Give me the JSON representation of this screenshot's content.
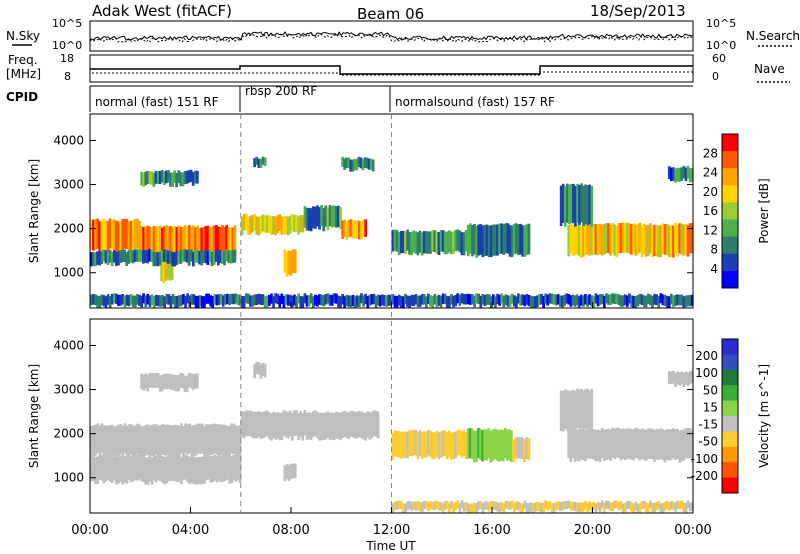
{
  "header": {
    "station": "Adak West (fitACF)",
    "beam": "Beam 06",
    "date": "18/Sep/2013"
  },
  "top_panels": {
    "nsky": {
      "label": "N.Sky",
      "tick_top": "10^5",
      "tick_bottom": "10^0"
    },
    "nsearch": {
      "label": "N.Search",
      "tick_top": "10^5",
      "tick_bottom": "10^0"
    },
    "freq": {
      "label": "Freq.",
      "unit": "[MHz]",
      "tick_top": "18",
      "tick_bottom": "8"
    },
    "nave": {
      "label": "Nave",
      "tick_top": "60",
      "tick_bottom": "0"
    },
    "cpid": {
      "label": "CPID",
      "modes": [
        {
          "label": "normal (fast) 151 RF",
          "start_hour": 0,
          "end_hour": 6
        },
        {
          "label": "rbsp 200 RF",
          "start_hour": 6,
          "end_hour": 12
        },
        {
          "label": "normalsound (fast) 157 RF",
          "start_hour": 12,
          "end_hour": 24
        }
      ]
    }
  },
  "colors": {
    "power_scale": [
      "#0000ff",
      "#1a3fb0",
      "#2e7d6a",
      "#4caf50",
      "#9acd32",
      "#ffd400",
      "#ffa500",
      "#ff5a00",
      "#ff0000"
    ],
    "velocity_scale": [
      "#2b2bd0",
      "#3050c0",
      "#1f7a3a",
      "#38b038",
      "#8bd448",
      "#c0c0c0",
      "#ffcc33",
      "#ff9900",
      "#ff5500",
      "#ff0000"
    ],
    "ground_scatter": "#bebebe"
  },
  "chart_data": [
    {
      "type": "heatmap",
      "title": "Power",
      "ylabel": "Slant Range [km]",
      "xlabel": "Time UT",
      "x_ticks": [
        "00:00",
        "04:00",
        "08:00",
        "12:00",
        "16:00",
        "20:00",
        "00:00"
      ],
      "y_ticks": [
        "1000",
        "2000",
        "3000",
        "4000"
      ],
      "xlim_hours": [
        0,
        24
      ],
      "ylim_km": [
        200,
        4600
      ],
      "colorbar": {
        "label": "Power [dB]",
        "ticks": [
          "4",
          "8",
          "12",
          "16",
          "20",
          "24",
          "28"
        ],
        "range": [
          0,
          30
        ]
      },
      "regions": [
        {
          "t0": 0.0,
          "t1": 2.0,
          "r0": 1500,
          "r1": 2200,
          "value": 22
        },
        {
          "t0": 2.0,
          "t1": 5.8,
          "r0": 1350,
          "r1": 2050,
          "value": 24
        },
        {
          "t0": 2.8,
          "t1": 3.3,
          "r0": 800,
          "r1": 1400,
          "value": 18
        },
        {
          "t0": 2.0,
          "t1": 4.3,
          "r0": 3000,
          "r1": 3300,
          "value": 10
        },
        {
          "t0": 0.0,
          "t1": 5.8,
          "r0": 1200,
          "r1": 1500,
          "value": 8
        },
        {
          "t0": 6.0,
          "t1": 8.5,
          "r0": 1900,
          "r1": 2300,
          "value": 18
        },
        {
          "t0": 8.5,
          "t1": 10.0,
          "r0": 2000,
          "r1": 2500,
          "value": 10
        },
        {
          "t0": 7.7,
          "t1": 8.2,
          "r0": 950,
          "r1": 1500,
          "value": 20
        },
        {
          "t0": 6.5,
          "t1": 7.0,
          "r0": 3400,
          "r1": 3600,
          "value": 8
        },
        {
          "t0": 10.0,
          "t1": 11.0,
          "r0": 1800,
          "r1": 2200,
          "value": 22
        },
        {
          "t0": 10.0,
          "t1": 11.3,
          "r0": 3350,
          "r1": 3600,
          "value": 8
        },
        {
          "t0": 12.0,
          "t1": 15.0,
          "r0": 1450,
          "r1": 1950,
          "value": 10
        },
        {
          "t0": 15.0,
          "t1": 17.5,
          "r0": 1400,
          "r1": 2100,
          "value": 8
        },
        {
          "t0": 19.0,
          "t1": 24.0,
          "r0": 1400,
          "r1": 2100,
          "value": 20
        },
        {
          "t0": 18.7,
          "t1": 20.0,
          "r0": 2100,
          "r1": 3000,
          "value": 8
        },
        {
          "t0": 23.0,
          "t1": 24.0,
          "r0": 3100,
          "r1": 3400,
          "value": 8
        },
        {
          "t0": 0.0,
          "t1": 24.0,
          "r0": 250,
          "r1": 500,
          "value": 6
        }
      ]
    },
    {
      "type": "heatmap",
      "title": "Velocity",
      "ylabel": "Slant Range [km]",
      "xlabel": "Time UT",
      "x_ticks": [
        "00:00",
        "04:00",
        "08:00",
        "12:00",
        "16:00",
        "20:00",
        "00:00"
      ],
      "y_ticks": [
        "1000",
        "2000",
        "3000",
        "4000"
      ],
      "xlim_hours": [
        0,
        24
      ],
      "ylim_km": [
        200,
        4600
      ],
      "colorbar": {
        "label": "Velocity [m s^-1]",
        "ticks": [
          "200",
          "100",
          "50",
          "15",
          "-15",
          "-50",
          "-100",
          "-200"
        ],
        "range": [
          -250,
          250
        ]
      },
      "regions": [
        {
          "t0": 0.0,
          "t1": 6.0,
          "r0": 1500,
          "r1": 2200,
          "value": 0,
          "gs": true
        },
        {
          "t0": 0.0,
          "t1": 6.0,
          "r0": 900,
          "r1": 1500,
          "value": 0,
          "gs": true
        },
        {
          "t0": 2.0,
          "t1": 4.3,
          "r0": 3000,
          "r1": 3350,
          "value": 0,
          "gs": true
        },
        {
          "t0": 6.0,
          "t1": 11.5,
          "r0": 1900,
          "r1": 2500,
          "value": 0,
          "gs": true
        },
        {
          "t0": 7.7,
          "t1": 8.2,
          "r0": 950,
          "r1": 1300,
          "value": 0,
          "gs": true
        },
        {
          "t0": 6.5,
          "t1": 7.0,
          "r0": 3300,
          "r1": 3600,
          "value": 0,
          "gs": true
        },
        {
          "t0": 12.0,
          "t1": 15.0,
          "r0": 1450,
          "r1": 2050,
          "value": -60
        },
        {
          "t0": 15.0,
          "t1": 16.8,
          "r0": 1400,
          "r1": 2100,
          "value": 40
        },
        {
          "t0": 16.8,
          "t1": 17.5,
          "r0": 1400,
          "r1": 1900,
          "value": -60
        },
        {
          "t0": 19.0,
          "t1": 24.0,
          "r0": 1400,
          "r1": 2100,
          "value": 0,
          "gs": true
        },
        {
          "t0": 18.7,
          "t1": 20.0,
          "r0": 2100,
          "r1": 3000,
          "value": 0,
          "gs": true
        },
        {
          "t0": 23.0,
          "t1": 24.0,
          "r0": 3100,
          "r1": 3400,
          "value": 0,
          "gs": true
        },
        {
          "t0": 12.0,
          "t1": 24.0,
          "r0": 250,
          "r1": 450,
          "value": -50
        }
      ]
    }
  ]
}
